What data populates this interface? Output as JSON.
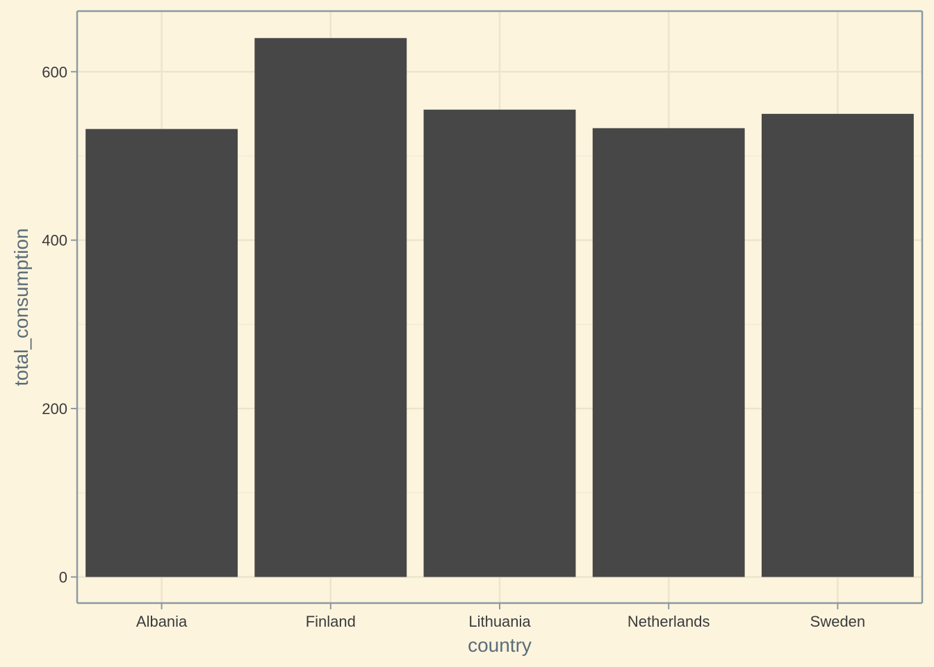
{
  "colors": {
    "background": "#fdf4de",
    "panel_border": "#8a9aa3",
    "grid_major": "#ede4cc",
    "grid_minor": "#f3ead3",
    "bar_fill": "#474747",
    "tick_text": "#3b3b3b",
    "axis_title_text": "#5b6d78"
  },
  "chart_data": {
    "type": "bar",
    "title": "",
    "xlabel": "country",
    "ylabel": "total_consumption",
    "categories": [
      "Albania",
      "Finland",
      "Lithuania",
      "Netherlands",
      "Sweden"
    ],
    "values": [
      532,
      640,
      555,
      533,
      550
    ],
    "ylim": [
      -31,
      672
    ],
    "yticks": [
      0,
      200,
      400,
      600
    ],
    "ytick_labels": [
      "0",
      "200",
      "400",
      "600"
    ],
    "grid": true,
    "legend": "none"
  }
}
